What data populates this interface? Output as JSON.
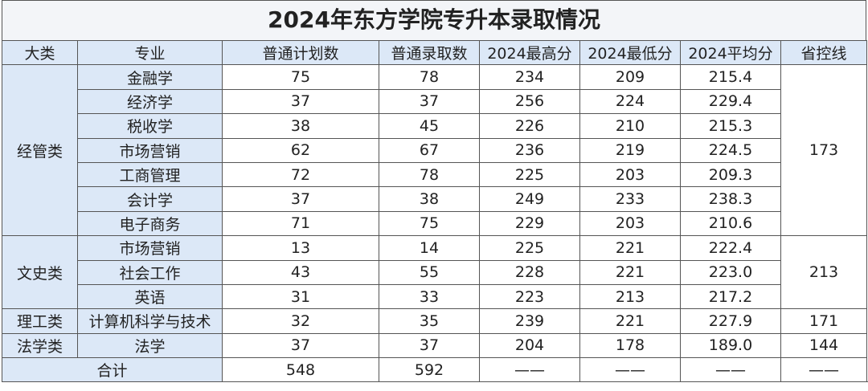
{
  "title": "2024年东方学院专升本录取情况",
  "table": {
    "headers": [
      "大类",
      "专业",
      "普通计划数",
      "普通录取数",
      "2024最高分",
      "2024最低分",
      "2024平均分",
      "省控线"
    ],
    "groups": [
      {
        "category": "经管类",
        "control_line": "173",
        "majors": [
          [
            "金融学",
            "75",
            "78",
            "234",
            "209",
            "215.4"
          ],
          [
            "经济学",
            "37",
            "37",
            "256",
            "224",
            "229.4"
          ],
          [
            "税收学",
            "38",
            "45",
            "226",
            "210",
            "215.3"
          ],
          [
            "市场营销",
            "62",
            "67",
            "236",
            "219",
            "224.5"
          ],
          [
            "工商管理",
            "72",
            "78",
            "225",
            "203",
            "209.3"
          ],
          [
            "会计学",
            "37",
            "38",
            "249",
            "233",
            "238.3"
          ],
          [
            "电子商务",
            "71",
            "75",
            "229",
            "203",
            "210.6"
          ]
        ]
      },
      {
        "category": "文史类",
        "control_line": "213",
        "majors": [
          [
            "市场营销",
            "13",
            "14",
            "225",
            "221",
            "222.4"
          ],
          [
            "社会工作",
            "43",
            "55",
            "228",
            "221",
            "223.0"
          ],
          [
            "英语",
            "31",
            "33",
            "223",
            "213",
            "217.2"
          ]
        ]
      },
      {
        "category": "理工类",
        "control_line": "171",
        "majors": [
          [
            "计算机科学与技术",
            "32",
            "35",
            "239",
            "221",
            "227.9"
          ]
        ]
      },
      {
        "category": "法学类",
        "control_line": "144",
        "majors": [
          [
            "法学",
            "37",
            "37",
            "204",
            "178",
            "189.0"
          ]
        ]
      }
    ],
    "total": [
      "合计",
      "548",
      "592",
      "——",
      "——",
      "——",
      "——"
    ]
  }
}
